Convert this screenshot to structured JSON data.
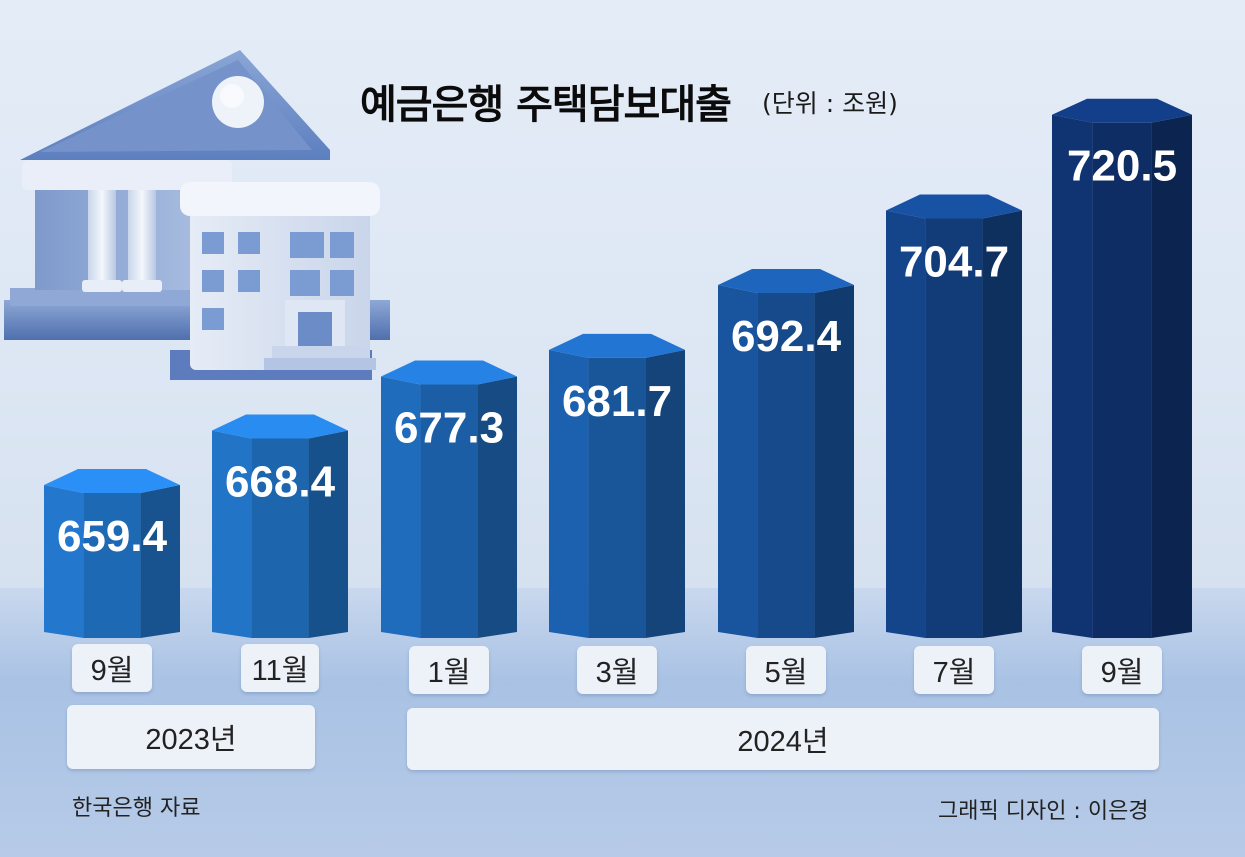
{
  "title": "예금은행 주택담보대출",
  "unit": "(단위 : 조원)",
  "source": "한국은행 자료",
  "credit": "그래픽 디자인 : 이은경",
  "colors": {
    "bar_light": "#1f6bb7",
    "bar_dark": "#0e2e66",
    "background": "#e2eaf5",
    "label_bg": "#edf2f9"
  },
  "chart_data": {
    "type": "bar",
    "title": "예금은행 주택담보대출",
    "unit": "(단위 : 조원)",
    "categories": [
      "9월",
      "11월",
      "1월",
      "3월",
      "5월",
      "7월",
      "9월"
    ],
    "values": [
      659.4,
      668.4,
      677.3,
      681.7,
      692.4,
      704.7,
      720.5
    ],
    "value_labels": [
      "659.4",
      "668.4",
      "677.3",
      "681.7",
      "692.4",
      "704.7",
      "720.5"
    ],
    "year_groups": [
      {
        "label": "2023년",
        "categories": [
          "9월",
          "11월"
        ]
      },
      {
        "label": "2024년",
        "categories": [
          "1월",
          "3월",
          "5월",
          "7월",
          "9월"
        ]
      }
    ],
    "data_labels": true,
    "grid": false,
    "legend": "none"
  }
}
